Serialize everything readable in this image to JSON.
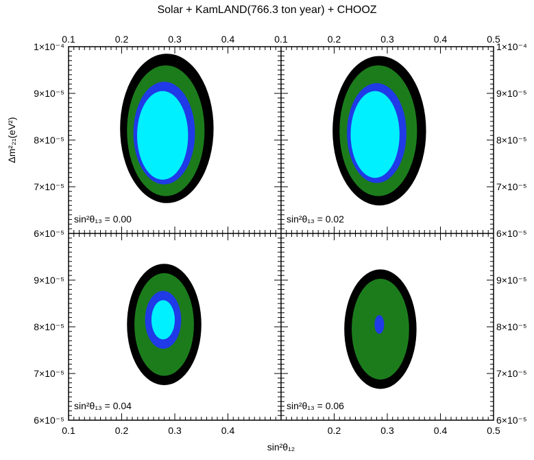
{
  "chart_data": {
    "type": "contour",
    "title": "Solar + KamLAND(766.3 ton year) + CHOOZ",
    "xlabel": "sin²θ₁₂",
    "ylabel": "Δm²₂₁(eV²)",
    "x_range": [
      0.1,
      0.5
    ],
    "y_range": [
      6e-05,
      0.0001
    ],
    "x_ticks": [
      "0.1",
      "0.2",
      "0.3",
      "0.4",
      "0.5"
    ],
    "y_ticks_top": [
      "6×10⁻⁵",
      "7×10⁻⁵",
      "8×10⁻⁵",
      "9×10⁻⁵",
      "1×10⁻⁴"
    ],
    "y_ticks_bottom": [
      "6×10⁻⁵",
      "7×10⁻⁵",
      "8×10⁻⁵",
      "9×10⁻⁵"
    ],
    "region_colors": [
      "#000000",
      "#1c7c1c",
      "#1f3ae6",
      "#00f0ff"
    ],
    "panels": [
      {
        "label": "sin²θ₁₃ = 0.00",
        "regions": [
          {
            "cx": 0.285,
            "cy": 8.25e-05,
            "rx": 0.088,
            "ry": 1.6e-05
          },
          {
            "cx": 0.283,
            "cy": 8.2e-05,
            "rx": 0.073,
            "ry": 1.4e-05
          },
          {
            "cx": 0.28,
            "cy": 8.15e-05,
            "rx": 0.058,
            "ry": 1.1e-05
          },
          {
            "cx": 0.277,
            "cy": 8.1e-05,
            "rx": 0.048,
            "ry": 9.5e-06
          }
        ]
      },
      {
        "label": "sin²θ₁₃ = 0.02",
        "regions": [
          {
            "cx": 0.285,
            "cy": 8.2e-05,
            "rx": 0.088,
            "ry": 1.6e-05
          },
          {
            "cx": 0.283,
            "cy": 8.2e-05,
            "rx": 0.073,
            "ry": 1.4e-05
          },
          {
            "cx": 0.28,
            "cy": 8.15e-05,
            "rx": 0.056,
            "ry": 1.07e-05
          },
          {
            "cx": 0.277,
            "cy": 8.12e-05,
            "rx": 0.046,
            "ry": 9.3e-06
          }
        ]
      },
      {
        "label": "sin²θ₁₃ = 0.04",
        "regions": [
          {
            "cx": 0.28,
            "cy": 8.05e-05,
            "rx": 0.07,
            "ry": 1.3e-05
          },
          {
            "cx": 0.28,
            "cy": 8.05e-05,
            "rx": 0.056,
            "ry": 1.1e-05
          },
          {
            "cx": 0.278,
            "cy": 8.15e-05,
            "rx": 0.034,
            "ry": 6.2e-06
          },
          {
            "cx": 0.278,
            "cy": 8.15e-05,
            "rx": 0.022,
            "ry": 4.2e-06
          }
        ]
      },
      {
        "label": "sin²θ₁₃ = 0.06",
        "regions": [
          {
            "cx": 0.287,
            "cy": 7.95e-05,
            "rx": 0.068,
            "ry": 1.28e-05
          },
          {
            "cx": 0.287,
            "cy": 7.95e-05,
            "rx": 0.054,
            "ry": 1.08e-05
          },
          {
            "cx": 0.285,
            "cy": 8.05e-05,
            "rx": 0.009,
            "ry": 2e-06
          }
        ]
      }
    ]
  }
}
